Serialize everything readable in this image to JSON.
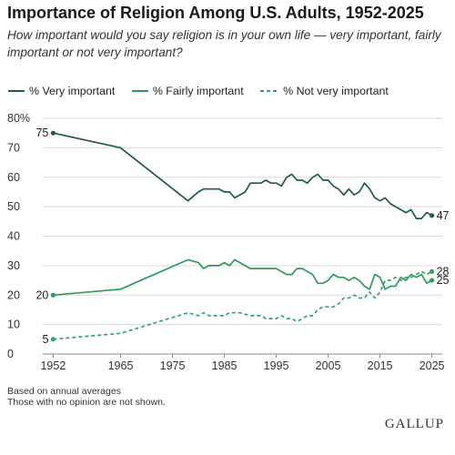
{
  "chart_data": {
    "type": "line",
    "title": "Importance of Religion Among U.S. Adults, 1952-2025",
    "subtitle": "How important would you say religion is in your own life — very important, fairly important or not very important?",
    "xlabel": "",
    "ylabel": "",
    "x_ticks": [
      "1952",
      "1965",
      "1975",
      "1985",
      "1995",
      "2005",
      "2015",
      "2025"
    ],
    "y_ticks": [
      "0",
      "10",
      "20",
      "30",
      "40",
      "50",
      "60",
      "70",
      "80%"
    ],
    "xlim": [
      1950,
      2027
    ],
    "ylim": [
      0,
      80
    ],
    "grid": "horizontal",
    "legend_position": "top-left",
    "series": [
      {
        "name": "% Very important",
        "color": "#1f5c46",
        "dash": "solid",
        "start_label": "75",
        "end_label": "47",
        "points": [
          [
            1952,
            75
          ],
          [
            1965,
            70
          ],
          [
            1978,
            52
          ],
          [
            1980,
            55
          ],
          [
            1981,
            56
          ],
          [
            1983,
            56
          ],
          [
            1984,
            56
          ],
          [
            1985,
            55
          ],
          [
            1986,
            55
          ],
          [
            1987,
            53
          ],
          [
            1988,
            54
          ],
          [
            1989,
            55
          ],
          [
            1990,
            58
          ],
          [
            1991,
            58
          ],
          [
            1992,
            58
          ],
          [
            1993,
            59
          ],
          [
            1994,
            58
          ],
          [
            1995,
            58
          ],
          [
            1996,
            57
          ],
          [
            1997,
            60
          ],
          [
            1998,
            61
          ],
          [
            1999,
            59
          ],
          [
            2000,
            59
          ],
          [
            2001,
            58
          ],
          [
            2002,
            60
          ],
          [
            2003,
            61
          ],
          [
            2004,
            59
          ],
          [
            2005,
            59
          ],
          [
            2006,
            57
          ],
          [
            2007,
            56
          ],
          [
            2008,
            54
          ],
          [
            2009,
            56
          ],
          [
            2010,
            54
          ],
          [
            2011,
            55
          ],
          [
            2012,
            58
          ],
          [
            2013,
            56
          ],
          [
            2014,
            53
          ],
          [
            2015,
            52
          ],
          [
            2016,
            53
          ],
          [
            2017,
            51
          ],
          [
            2018,
            50
          ],
          [
            2019,
            49
          ],
          [
            2020,
            48
          ],
          [
            2021,
            49
          ],
          [
            2022,
            46
          ],
          [
            2023,
            46
          ],
          [
            2024,
            48
          ],
          [
            2025,
            47
          ]
        ]
      },
      {
        "name": "% Fairly important",
        "color": "#2e9a5c",
        "dash": "solid",
        "start_label": "20",
        "end_label": "25",
        "points": [
          [
            1952,
            20
          ],
          [
            1965,
            22
          ],
          [
            1978,
            32
          ],
          [
            1980,
            31
          ],
          [
            1981,
            29
          ],
          [
            1982,
            30
          ],
          [
            1984,
            30
          ],
          [
            1985,
            31
          ],
          [
            1986,
            30
          ],
          [
            1987,
            32
          ],
          [
            1988,
            31
          ],
          [
            1989,
            30
          ],
          [
            1990,
            29
          ],
          [
            1992,
            29
          ],
          [
            1994,
            29
          ],
          [
            1995,
            29
          ],
          [
            1996,
            28
          ],
          [
            1997,
            27
          ],
          [
            1998,
            27
          ],
          [
            1999,
            29
          ],
          [
            2000,
            29
          ],
          [
            2001,
            28
          ],
          [
            2002,
            27
          ],
          [
            2003,
            24
          ],
          [
            2004,
            24
          ],
          [
            2005,
            25
          ],
          [
            2006,
            27
          ],
          [
            2007,
            26
          ],
          [
            2008,
            26
          ],
          [
            2009,
            25
          ],
          [
            2010,
            26
          ],
          [
            2011,
            25
          ],
          [
            2012,
            23
          ],
          [
            2013,
            22
          ],
          [
            2014,
            27
          ],
          [
            2015,
            26
          ],
          [
            2016,
            22
          ],
          [
            2017,
            23
          ],
          [
            2018,
            23
          ],
          [
            2019,
            26
          ],
          [
            2020,
            25
          ],
          [
            2021,
            27
          ],
          [
            2022,
            26
          ],
          [
            2023,
            27
          ],
          [
            2024,
            24
          ],
          [
            2025,
            25
          ]
        ]
      },
      {
        "name": "% Not very important",
        "color": "#35a468",
        "dash": "dashed",
        "start_label": "5",
        "end_label": "28",
        "points": [
          [
            1952,
            5
          ],
          [
            1965,
            7
          ],
          [
            1978,
            14
          ],
          [
            1980,
            13
          ],
          [
            1981,
            14
          ],
          [
            1982,
            13
          ],
          [
            1984,
            13
          ],
          [
            1985,
            13
          ],
          [
            1986,
            14
          ],
          [
            1988,
            14
          ],
          [
            1990,
            13
          ],
          [
            1992,
            13
          ],
          [
            1993,
            12
          ],
          [
            1994,
            12
          ],
          [
            1995,
            12
          ],
          [
            1996,
            13
          ],
          [
            1997,
            12
          ],
          [
            1998,
            12
          ],
          [
            1999,
            11
          ],
          [
            2000,
            12
          ],
          [
            2001,
            13
          ],
          [
            2002,
            13
          ],
          [
            2003,
            15
          ],
          [
            2004,
            16
          ],
          [
            2005,
            16
          ],
          [
            2006,
            16
          ],
          [
            2007,
            17
          ],
          [
            2008,
            19
          ],
          [
            2009,
            19
          ],
          [
            2010,
            20
          ],
          [
            2011,
            19
          ],
          [
            2012,
            19
          ],
          [
            2013,
            21
          ],
          [
            2014,
            19
          ],
          [
            2015,
            21
          ],
          [
            2016,
            25
          ],
          [
            2017,
            25
          ],
          [
            2018,
            26
          ],
          [
            2019,
            25
          ],
          [
            2020,
            26
          ],
          [
            2021,
            26
          ],
          [
            2022,
            27
          ],
          [
            2023,
            28
          ],
          [
            2024,
            27
          ],
          [
            2025,
            28
          ]
        ]
      }
    ]
  },
  "notes": [
    "Based on annual averages",
    "Those with no opinion are not shown."
  ],
  "brand": "GALLUP"
}
